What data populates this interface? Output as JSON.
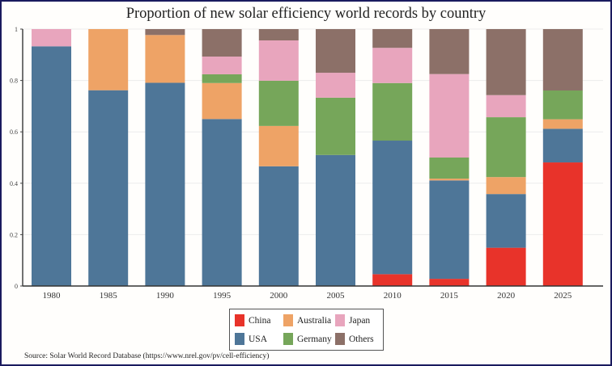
{
  "chart_data": {
    "type": "bar",
    "stacked": true,
    "title": "Proportion of new solar efficiency world records by country",
    "xlabel": "",
    "ylabel": "",
    "ylim": [
      0,
      1
    ],
    "yticks": [
      0,
      0.2,
      0.4,
      0.6,
      0.8,
      1
    ],
    "ytick_labels": [
      "0",
      "0.2",
      "0.4",
      "0.6",
      "0.8",
      "1"
    ],
    "grid": true,
    "legend_position": "bottom-center",
    "categories": [
      "1980",
      "1985",
      "1990",
      "1995",
      "2000",
      "2005",
      "2010",
      "2015",
      "2020",
      "2025"
    ],
    "series": [
      {
        "name": "China",
        "color": "#e8332a",
        "values": [
          0,
          0,
          0,
          0,
          0,
          0,
          0.046,
          0.028,
          0.149,
          0.481
        ]
      },
      {
        "name": "USA",
        "color": "#4e7698",
        "values": [
          0.933,
          0.762,
          0.791,
          0.65,
          0.466,
          0.51,
          0.52,
          0.383,
          0.209,
          0.131
        ]
      },
      {
        "name": "Australia",
        "color": "#eea366",
        "values": [
          0,
          0.238,
          0.186,
          0.14,
          0.157,
          0,
          0,
          0.007,
          0.066,
          0.037
        ]
      },
      {
        "name": "Germany",
        "color": "#76a65a",
        "values": [
          0,
          0,
          0,
          0.034,
          0.176,
          0.223,
          0.224,
          0.082,
          0.233,
          0.112
        ]
      },
      {
        "name": "Japan",
        "color": "#e8a5bd",
        "values": [
          0.067,
          0,
          0,
          0.069,
          0.157,
          0.097,
          0.137,
          0.325,
          0.086,
          0
        ]
      },
      {
        "name": "Others",
        "color": "#8c7068",
        "values": [
          0,
          0,
          0.023,
          0.107,
          0.044,
          0.17,
          0.073,
          0.175,
          0.257,
          0.239
        ]
      }
    ],
    "legend_order": [
      "China",
      "Australia",
      "Japan",
      "USA",
      "Germany",
      "Others"
    ]
  },
  "source": "Source: Solar World Record Database (https://www.nrel.gov/pv/cell-efficiency)"
}
